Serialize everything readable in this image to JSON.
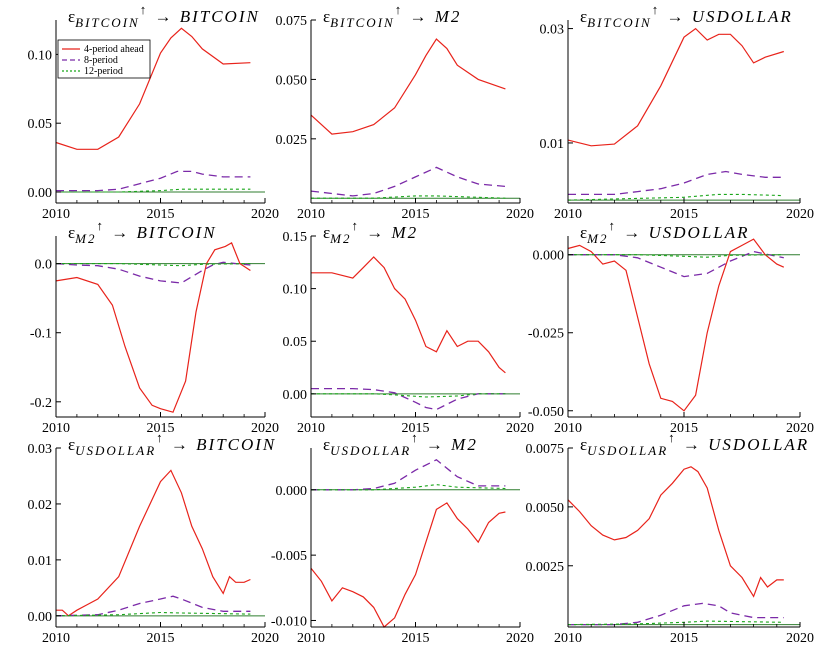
{
  "colors": {
    "series_4": "#e8231b",
    "series_8": "#7b2aa8",
    "series_12": "#19a619",
    "zero_line": "#2f7d2f"
  },
  "legend": [
    "4-period ahead",
    "8-period",
    "12-period"
  ],
  "chart_data": [
    {
      "type": "line",
      "title": "εBITCOIN↑ → BITCOIN",
      "title_parts": {
        "sym": "ε",
        "sub": "BITCOIN",
        "arrow": "↑",
        "target": "→ BITCOIN"
      },
      "xlim": [
        2010,
        2020
      ],
      "ylim": [
        -0.008,
        0.125
      ],
      "xticks": [
        2010,
        2015,
        2020
      ],
      "yticks": [
        0.0,
        0.05,
        0.1
      ],
      "ytick_labels": [
        "0.00",
        "0.05",
        "0.10"
      ],
      "series": [
        {
          "key": "4",
          "x": [
            2010,
            2011,
            2012,
            2013,
            2014,
            2015,
            2015.5,
            2016,
            2016.5,
            2017,
            2018,
            2019.3
          ],
          "values": [
            0.036,
            0.031,
            0.031,
            0.04,
            0.064,
            0.101,
            0.112,
            0.119,
            0.113,
            0.104,
            0.093,
            0.094
          ]
        },
        {
          "key": "8",
          "x": [
            2010,
            2012,
            2013,
            2014,
            2015,
            2015.8,
            2016.5,
            2017,
            2018,
            2019.3
          ],
          "values": [
            0.001,
            0.001,
            0.002,
            0.006,
            0.01,
            0.015,
            0.015,
            0.013,
            0.011,
            0.011
          ]
        },
        {
          "key": "12",
          "x": [
            2010,
            2013,
            2015,
            2016,
            2019.3
          ],
          "values": [
            0,
            0,
            0.001,
            0.002,
            0.002
          ]
        }
      ]
    },
    {
      "type": "line",
      "title": "εBITCOIN↑ → M2",
      "title_parts": {
        "sym": "ε",
        "sub": "BITCOIN",
        "arrow": "↑",
        "target": "→ M2"
      },
      "xlim": [
        2010,
        2020
      ],
      "ylim": [
        -0.002,
        0.075
      ],
      "xticks": [
        2010,
        2015,
        2020
      ],
      "yticks": [
        0.025,
        0.05,
        0.075
      ],
      "ytick_labels": [
        "0.025",
        "0.050",
        "0.075"
      ],
      "series": [
        {
          "key": "4",
          "x": [
            2010,
            2011,
            2012,
            2013,
            2014,
            2015,
            2015.5,
            2016,
            2016.5,
            2017,
            2018,
            2019.3
          ],
          "values": [
            0.035,
            0.027,
            0.028,
            0.031,
            0.038,
            0.052,
            0.06,
            0.067,
            0.063,
            0.056,
            0.05,
            0.046
          ]
        },
        {
          "key": "8",
          "x": [
            2010,
            2012,
            2013,
            2014,
            2015,
            2016,
            2017,
            2018,
            2019.3
          ],
          "values": [
            0.003,
            0.001,
            0.002,
            0.005,
            0.009,
            0.013,
            0.009,
            0.006,
            0.005
          ]
        },
        {
          "key": "12",
          "x": [
            2010,
            2013,
            2015,
            2016,
            2019.3
          ],
          "values": [
            0,
            0,
            0.001,
            0.001,
            0
          ]
        }
      ]
    },
    {
      "type": "line",
      "title": "εBITCOIN↑ → USDOLLAR",
      "title_parts": {
        "sym": "ε",
        "sub": "BITCOIN",
        "arrow": "↑",
        "target": "→ USDOLLAR"
      },
      "xlim": [
        2010,
        2020
      ],
      "ylim": [
        -0.0005,
        0.0315
      ],
      "xticks": [
        2010,
        2015,
        2020
      ],
      "yticks": [
        0.01,
        0.03
      ],
      "ytick_labels": [
        "0.01",
        "0.03"
      ],
      "series": [
        {
          "key": "4",
          "x": [
            2010,
            2011,
            2012,
            2013,
            2014,
            2015,
            2015.5,
            2016,
            2016.5,
            2017,
            2017.5,
            2018,
            2018.5,
            2019.3
          ],
          "values": [
            0.0105,
            0.0095,
            0.0098,
            0.013,
            0.02,
            0.0285,
            0.03,
            0.028,
            0.029,
            0.029,
            0.027,
            0.024,
            0.025,
            0.026
          ]
        },
        {
          "key": "8",
          "x": [
            2010,
            2012,
            2013,
            2014,
            2015,
            2016,
            2016.8,
            2017.5,
            2018.5,
            2019.3
          ],
          "values": [
            0.001,
            0.001,
            0.0015,
            0.002,
            0.003,
            0.0045,
            0.005,
            0.0045,
            0.004,
            0.004
          ]
        },
        {
          "key": "12",
          "x": [
            2010,
            2013,
            2015,
            2016.5,
            2017.5,
            2019.3
          ],
          "values": [
            0,
            0.0003,
            0.0005,
            0.001,
            0.001,
            0.0008
          ]
        }
      ]
    },
    {
      "type": "line",
      "title": "εM2↑ → BITCOIN",
      "title_parts": {
        "sym": "ε",
        "sub": "M2",
        "arrow": "↑",
        "target": "→ BITCOIN"
      },
      "xlim": [
        2010,
        2020
      ],
      "ylim": [
        -0.222,
        0.04
      ],
      "xticks": [
        2010,
        2015,
        2020
      ],
      "yticks": [
        0.0,
        -0.1,
        -0.2
      ],
      "ytick_labels": [
        "0.0",
        "-0.1",
        "-0.2"
      ],
      "series": [
        {
          "key": "4",
          "x": [
            2010,
            2011,
            2012,
            2012.7,
            2013.3,
            2014,
            2014.6,
            2015,
            2015.6,
            2016.2,
            2016.7,
            2017.2,
            2017.6,
            2018.1,
            2018.4,
            2018.8,
            2019.3
          ],
          "values": [
            -0.025,
            -0.02,
            -0.03,
            -0.06,
            -0.12,
            -0.18,
            -0.205,
            -0.21,
            -0.215,
            -0.17,
            -0.07,
            0.0,
            0.02,
            0.025,
            0.03,
            0.0,
            -0.01
          ]
        },
        {
          "key": "8",
          "x": [
            2010,
            2011,
            2012,
            2013,
            2014,
            2015,
            2016,
            2017,
            2017.5,
            2018,
            2019.3
          ],
          "values": [
            0,
            -0.002,
            -0.003,
            -0.008,
            -0.018,
            -0.025,
            -0.028,
            -0.01,
            -0.002,
            0.002,
            -0.002
          ]
        },
        {
          "key": "12",
          "x": [
            2010,
            2013,
            2015,
            2016,
            2017,
            2019.3
          ],
          "values": [
            0,
            0,
            -0.002,
            -0.003,
            -0.001,
            0
          ]
        }
      ]
    },
    {
      "type": "line",
      "title": "εM2↑ → M2",
      "title_parts": {
        "sym": "ε",
        "sub": "M2",
        "arrow": "↑",
        "target": "→ M2"
      },
      "xlim": [
        2010,
        2020
      ],
      "ylim": [
        -0.022,
        0.15
      ],
      "xticks": [
        2010,
        2015,
        2020
      ],
      "yticks": [
        0.0,
        0.05,
        0.1,
        0.15
      ],
      "ytick_labels": [
        "0.00",
        "0.05",
        "0.10",
        "0.15"
      ],
      "series": [
        {
          "key": "4",
          "x": [
            2010,
            2011,
            2012,
            2012.5,
            2013,
            2013.5,
            2014,
            2014.5,
            2015,
            2015.5,
            2016,
            2016.5,
            2017,
            2017.5,
            2018,
            2018.5,
            2019,
            2019.3
          ],
          "values": [
            0.115,
            0.115,
            0.11,
            0.12,
            0.13,
            0.12,
            0.1,
            0.09,
            0.07,
            0.045,
            0.04,
            0.06,
            0.045,
            0.05,
            0.05,
            0.04,
            0.025,
            0.02
          ]
        },
        {
          "key": "8",
          "x": [
            2010,
            2012,
            2013,
            2014,
            2015,
            2015.5,
            2016,
            2017,
            2018,
            2019.3
          ],
          "values": [
            0.005,
            0.005,
            0.004,
            0.001,
            -0.008,
            -0.013,
            -0.015,
            -0.005,
            0.0,
            0.0
          ]
        },
        {
          "key": "12",
          "x": [
            2010,
            2013,
            2014,
            2015.5,
            2017,
            2018,
            2019.3
          ],
          "values": [
            0,
            0,
            -0.001,
            -0.003,
            -0.002,
            0,
            0
          ]
        }
      ]
    },
    {
      "type": "line",
      "title": "εM2↑ → USDOLLAR",
      "title_parts": {
        "sym": "ε",
        "sub": "M2",
        "arrow": "↑",
        "target": "→ USDOLLAR"
      },
      "xlim": [
        2010,
        2020
      ],
      "ylim": [
        -0.052,
        0.006
      ],
      "xticks": [
        2010,
        2015,
        2020
      ],
      "yticks": [
        0.0,
        -0.025,
        -0.05
      ],
      "ytick_labels": [
        "0.000",
        "-0.025",
        "-0.050"
      ],
      "series": [
        {
          "key": "4",
          "x": [
            2010,
            2010.5,
            2011,
            2011.5,
            2012,
            2012.5,
            2013,
            2013.5,
            2014,
            2014.5,
            2015,
            2015.5,
            2016,
            2016.5,
            2017,
            2017.5,
            2018,
            2018.5,
            2019,
            2019.3
          ],
          "values": [
            0.002,
            0.003,
            0.001,
            -0.003,
            -0.002,
            -0.005,
            -0.02,
            -0.035,
            -0.046,
            -0.047,
            -0.05,
            -0.045,
            -0.025,
            -0.01,
            0.001,
            0.003,
            0.005,
            0.0,
            -0.003,
            -0.004
          ]
        },
        {
          "key": "8",
          "x": [
            2010,
            2012,
            2013,
            2014,
            2015,
            2016,
            2017,
            2018,
            2019.3
          ],
          "values": [
            0,
            0,
            -0.001,
            -0.004,
            -0.007,
            -0.006,
            -0.002,
            0.001,
            -0.001
          ]
        },
        {
          "key": "12",
          "x": [
            2010,
            2013,
            2015,
            2016,
            2017,
            2019.3
          ],
          "values": [
            0,
            0,
            -0.0005,
            -0.0008,
            -0.0002,
            0
          ]
        }
      ]
    },
    {
      "type": "line",
      "title": "εUSDOLLAR↑ → BITCOIN",
      "title_parts": {
        "sym": "ε",
        "sub": "USDOLLAR",
        "arrow": "↑",
        "target": "→ BITCOIN"
      },
      "xlim": [
        2010,
        2020
      ],
      "ylim": [
        -0.002,
        0.03
      ],
      "xticks": [
        2010,
        2015,
        2020
      ],
      "yticks": [
        0.0,
        0.01,
        0.02,
        0.03
      ],
      "ytick_labels": [
        "0.00",
        "0.01",
        "0.02",
        "0.03"
      ],
      "series": [
        {
          "key": "4",
          "x": [
            2010,
            2010.3,
            2010.6,
            2011,
            2011.5,
            2012,
            2013,
            2014,
            2015,
            2015.5,
            2016,
            2016.5,
            2017,
            2017.5,
            2018,
            2018.3,
            2018.6,
            2019,
            2019.3
          ],
          "values": [
            0.001,
            0.001,
            0.0,
            0.001,
            0.002,
            0.003,
            0.007,
            0.016,
            0.024,
            0.026,
            0.022,
            0.016,
            0.012,
            0.007,
            0.004,
            0.007,
            0.006,
            0.006,
            0.0065
          ]
        },
        {
          "key": "8",
          "x": [
            2010,
            2012,
            2013,
            2014,
            2015,
            2015.6,
            2016,
            2017,
            2018,
            2019.3
          ],
          "values": [
            0,
            0.0002,
            0.001,
            0.0022,
            0.003,
            0.0035,
            0.003,
            0.0015,
            0.0008,
            0.0008
          ]
        },
        {
          "key": "12",
          "x": [
            2010,
            2013,
            2015,
            2016,
            2019.3
          ],
          "values": [
            0,
            0.0002,
            0.0006,
            0.0005,
            0.0003
          ]
        }
      ]
    },
    {
      "type": "line",
      "title": "εUSDOLLAR↑ → M2",
      "title_parts": {
        "sym": "ε",
        "sub": "USDOLLAR",
        "arrow": "↑",
        "target": "→ M2"
      },
      "xlim": [
        2010,
        2020
      ],
      "ylim": [
        -0.0105,
        0.0032
      ],
      "xticks": [
        2010,
        2015,
        2020
      ],
      "yticks": [
        0.0,
        -0.005,
        -0.01
      ],
      "ytick_labels": [
        "0.000",
        "-0.005",
        "-0.010"
      ],
      "series": [
        {
          "key": "4",
          "x": [
            2010,
            2010.5,
            2011,
            2011.5,
            2012,
            2012.5,
            2013,
            2013.5,
            2014,
            2014.5,
            2015,
            2015.5,
            2016,
            2016.5,
            2017,
            2017.5,
            2018,
            2018.5,
            2019,
            2019.3
          ],
          "values": [
            -0.006,
            -0.007,
            -0.0085,
            -0.0075,
            -0.0078,
            -0.0082,
            -0.009,
            -0.0105,
            -0.0098,
            -0.008,
            -0.0065,
            -0.004,
            -0.0015,
            -0.001,
            -0.0022,
            -0.003,
            -0.004,
            -0.0025,
            -0.0018,
            -0.0017
          ]
        },
        {
          "key": "8",
          "x": [
            2010,
            2012,
            2013,
            2014,
            2015,
            2016,
            2017,
            2018,
            2019.3
          ],
          "values": [
            0.0,
            0.0,
            0.0001,
            0.0005,
            0.0015,
            0.0023,
            0.001,
            0.0003,
            0.0003
          ]
        },
        {
          "key": "12",
          "x": [
            2010,
            2013,
            2015,
            2016,
            2017,
            2019.3
          ],
          "values": [
            0,
            0,
            0.0002,
            0.0004,
            0.0002,
            0.0001
          ]
        }
      ]
    },
    {
      "type": "line",
      "title": "εUSDOLLAR↑ → USDOLLAR",
      "title_parts": {
        "sym": "ε",
        "sub": "USDOLLAR",
        "arrow": "↑",
        "target": "→ USDOLLAR"
      },
      "xlim": [
        2010,
        2020
      ],
      "ylim": [
        -0.0001,
        0.0075
      ],
      "xticks": [
        2010,
        2015,
        2020
      ],
      "yticks": [
        0.0025,
        0.005,
        0.0075
      ],
      "ytick_labels": [
        "0.0025",
        "0.0050",
        "0.0075"
      ],
      "series": [
        {
          "key": "4",
          "x": [
            2010,
            2010.5,
            2011,
            2011.5,
            2012,
            2012.5,
            2013,
            2013.5,
            2014,
            2014.5,
            2015,
            2015.3,
            2015.6,
            2016,
            2016.5,
            2017,
            2017.5,
            2018,
            2018.3,
            2018.6,
            2019,
            2019.3
          ],
          "values": [
            0.0053,
            0.0048,
            0.0042,
            0.0038,
            0.0036,
            0.0037,
            0.004,
            0.0045,
            0.0055,
            0.006,
            0.0066,
            0.0067,
            0.0065,
            0.0058,
            0.004,
            0.0025,
            0.002,
            0.0012,
            0.002,
            0.0016,
            0.0019,
            0.0019
          ]
        },
        {
          "key": "8",
          "x": [
            2010,
            2012,
            2013,
            2014,
            2015,
            2015.8,
            2016.5,
            2017,
            2018,
            2019.3
          ],
          "values": [
            0.0,
            0.0,
            0.0001,
            0.0004,
            0.0008,
            0.0009,
            0.0008,
            0.0005,
            0.0003,
            0.0003
          ]
        },
        {
          "key": "12",
          "x": [
            2010,
            2013,
            2015,
            2016,
            2019.3
          ],
          "values": [
            0,
            3e-05,
            0.0001,
            0.00015,
            0.0001
          ]
        }
      ]
    }
  ]
}
